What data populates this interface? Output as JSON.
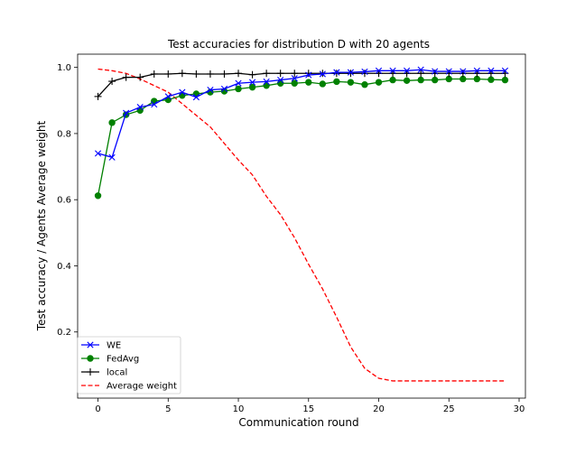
{
  "chart_data": {
    "type": "line",
    "title": "Test accuracies for distribution D with 20 agents",
    "xlabel": "Communication round",
    "ylabel": "Test accuracy / Agents Average weight",
    "xlim": [
      -1.45,
      30.45
    ],
    "ylim": [
      0.0,
      1.04
    ],
    "xticks": [
      0,
      5,
      10,
      15,
      20,
      25,
      30
    ],
    "yticks": [
      0.2,
      0.4,
      0.6,
      0.8,
      1.0
    ],
    "grid": false,
    "legend_position": "lower-left",
    "x": [
      0,
      1,
      2,
      3,
      4,
      5,
      6,
      7,
      8,
      9,
      10,
      11,
      12,
      13,
      14,
      15,
      16,
      17,
      18,
      19,
      20,
      21,
      22,
      23,
      24,
      25,
      26,
      27,
      28,
      29
    ],
    "series": [
      {
        "name": "WE",
        "color": "#0000ff",
        "marker": "x",
        "linestyle": "solid",
        "values": [
          0.74,
          0.728,
          0.862,
          0.88,
          0.888,
          0.912,
          0.925,
          0.91,
          0.932,
          0.935,
          0.952,
          0.955,
          0.957,
          0.962,
          0.967,
          0.977,
          0.98,
          0.985,
          0.985,
          0.987,
          0.99,
          0.99,
          0.99,
          0.993,
          0.988,
          0.988,
          0.988,
          0.99,
          0.99,
          0.99
        ]
      },
      {
        "name": "FedAvg",
        "color": "#008000",
        "marker": "circle",
        "linestyle": "solid",
        "values": [
          0.612,
          0.833,
          0.857,
          0.87,
          0.898,
          0.902,
          0.915,
          0.92,
          0.925,
          0.928,
          0.935,
          0.94,
          0.945,
          0.952,
          0.952,
          0.955,
          0.95,
          0.957,
          0.955,
          0.948,
          0.955,
          0.962,
          0.96,
          0.962,
          0.962,
          0.965,
          0.965,
          0.965,
          0.963,
          0.962
        ]
      },
      {
        "name": "local",
        "color": "#000000",
        "marker": "plus",
        "linestyle": "solid",
        "values": [
          0.912,
          0.958,
          0.97,
          0.97,
          0.98,
          0.98,
          0.982,
          0.98,
          0.98,
          0.98,
          0.982,
          0.978,
          0.982,
          0.982,
          0.982,
          0.982,
          0.982,
          0.982,
          0.982,
          0.982,
          0.982,
          0.982,
          0.982,
          0.982,
          0.982,
          0.982,
          0.982,
          0.982,
          0.982,
          0.982
        ]
      },
      {
        "name": "Average weight",
        "color": "#ff0000",
        "marker": "none",
        "linestyle": "dashed",
        "values": [
          0.995,
          0.99,
          0.982,
          0.965,
          0.945,
          0.925,
          0.89,
          0.855,
          0.82,
          0.77,
          0.72,
          0.675,
          0.61,
          0.555,
          0.485,
          0.405,
          0.33,
          0.245,
          0.155,
          0.09,
          0.06,
          0.052,
          0.052,
          0.052,
          0.052,
          0.052,
          0.052,
          0.052,
          0.052,
          0.052
        ]
      }
    ]
  }
}
